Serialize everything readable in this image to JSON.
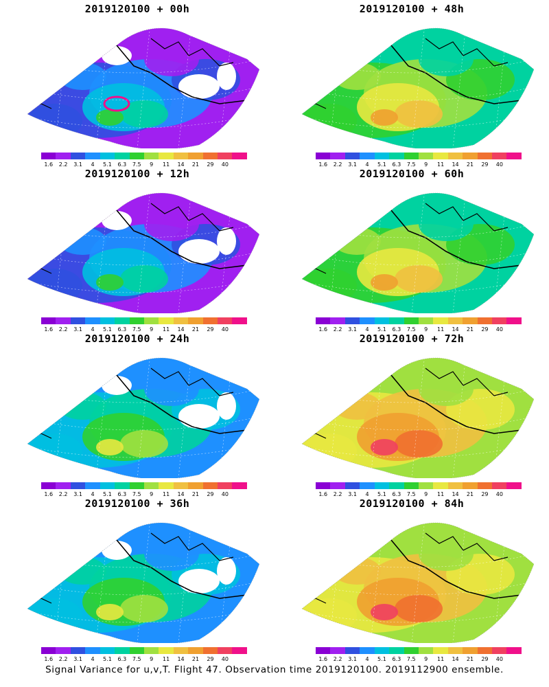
{
  "panels": [
    {
      "title": "2019120100 + 00h",
      "stage": 0
    },
    {
      "title": "2019120100 + 48h",
      "stage": 4
    },
    {
      "title": "2019120100 + 12h",
      "stage": 1
    },
    {
      "title": "2019120100 + 60h",
      "stage": 5
    },
    {
      "title": "2019120100 + 24h",
      "stage": 2
    },
    {
      "title": "2019120100 + 72h",
      "stage": 6
    },
    {
      "title": "2019120100 + 36h",
      "stage": 3
    },
    {
      "title": "2019120100 + 84h",
      "stage": 7
    }
  ],
  "colorbar": {
    "labels": [
      "1.6",
      "2.2",
      "3.1",
      "4",
      "5.1",
      "6.3",
      "7.5",
      "9",
      "11",
      "14",
      "21",
      "29",
      "40"
    ],
    "colors": [
      "#8a00d4",
      "#a020f0",
      "#3050e0",
      "#1e90ff",
      "#00c0e0",
      "#00d2a0",
      "#30d030",
      "#a0e040",
      "#e8e840",
      "#f0c040",
      "#f0a030",
      "#f07030",
      "#f04060",
      "#f0108a"
    ]
  },
  "footer": "Signal Variance for u,v,T. Flight 47. Observation time 2019120100. 2019112900 ensemble."
}
